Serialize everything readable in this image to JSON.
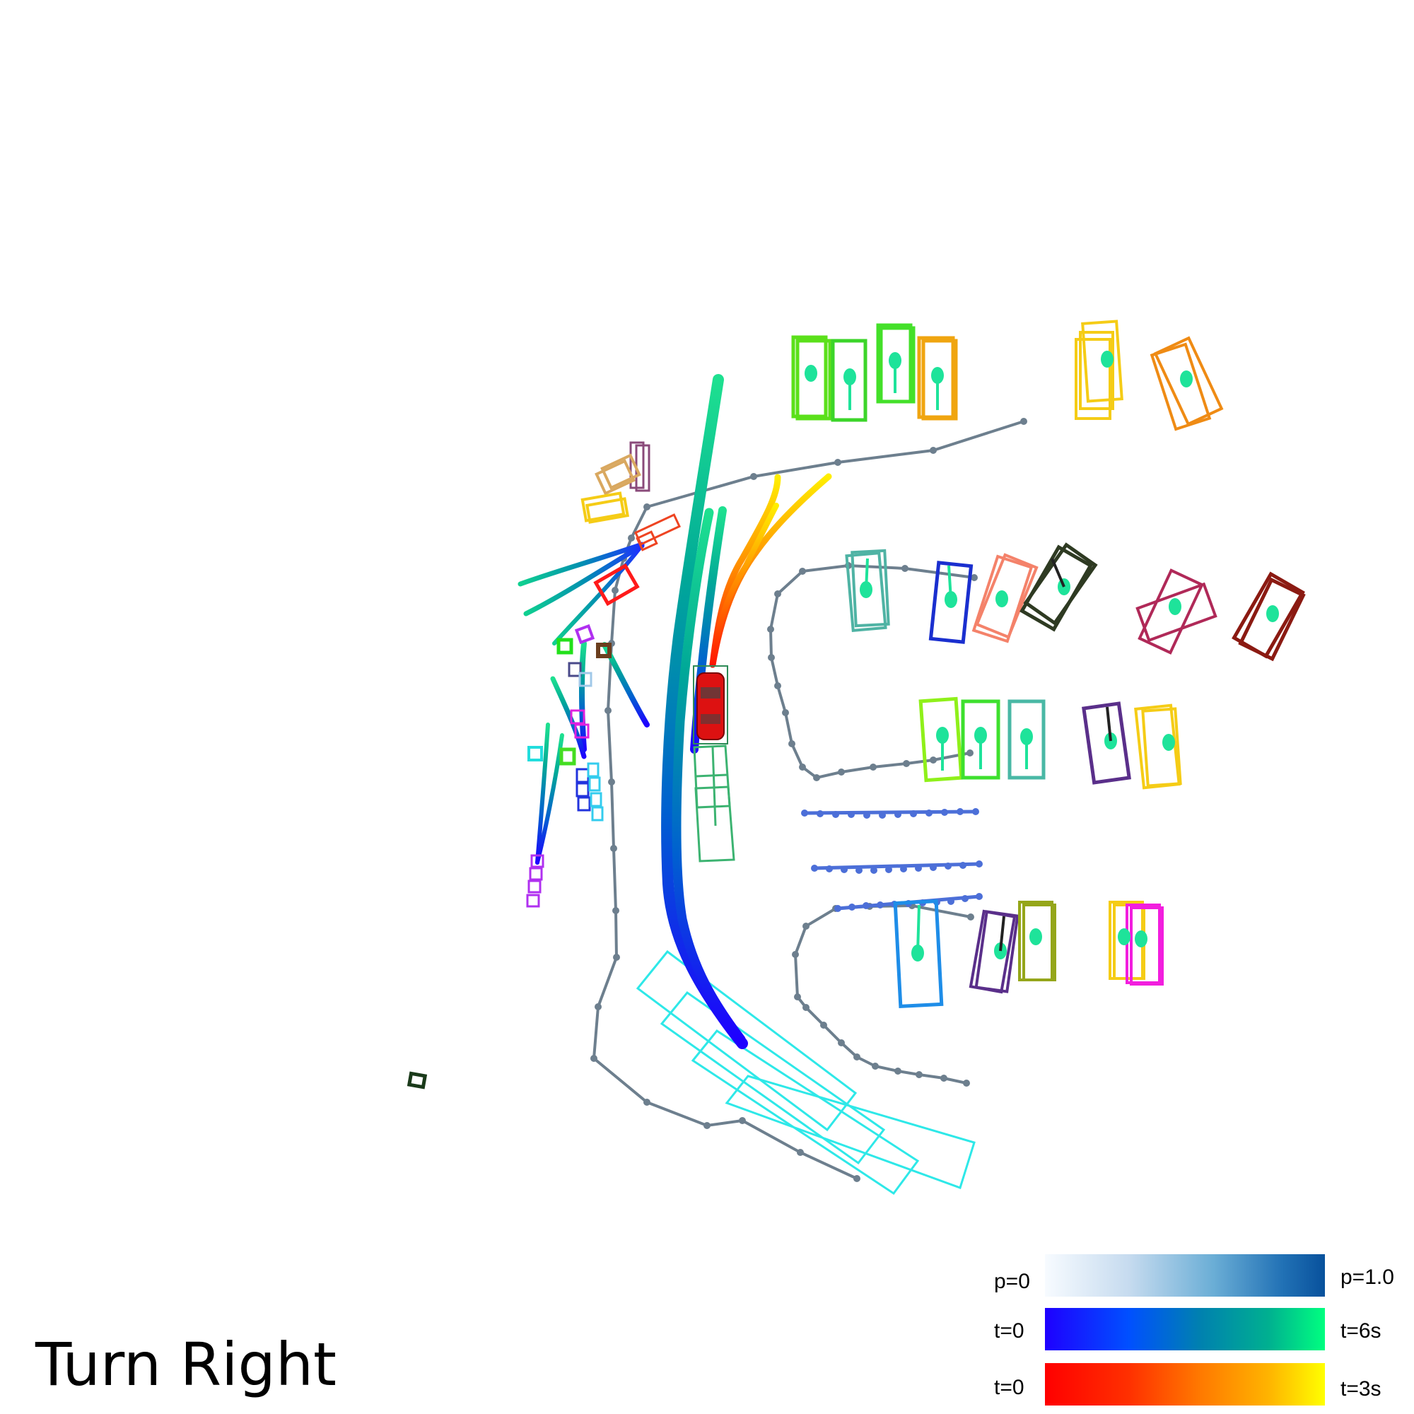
{
  "title": "Turn Right",
  "legend": {
    "probability": {
      "min_label": "p=0",
      "max_label": "p=1.0",
      "colors": [
        "#f7fbff",
        "#c6dbef",
        "#6baed6",
        "#2171b5",
        "#08519c"
      ]
    },
    "prediction_time": {
      "min_label": "t=0",
      "max_label": "t=6s",
      "colors": [
        "#1e00ff",
        "#0050ff",
        "#0080b0",
        "#00b090",
        "#00ff80"
      ]
    },
    "plan_time": {
      "min_label": "t=0",
      "max_label": "t=3s",
      "colors": [
        "#ff0000",
        "#ff3000",
        "#ff7800",
        "#ffb400",
        "#ffff00"
      ]
    }
  },
  "colors": {
    "road_boundary": "#6d7f8e",
    "crosswalk": "#4c6fd8",
    "ego_vehicle": "#dd1111",
    "agent_center": "#1ee39a"
  }
}
